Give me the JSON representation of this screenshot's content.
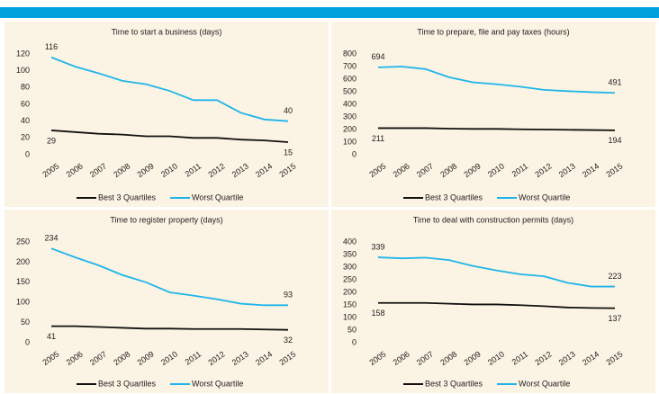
{
  "chart_data": [
    {
      "type": "line",
      "title": "Time to start a business (days)",
      "categories": [
        "2005",
        "2006",
        "2007",
        "2008",
        "2009",
        "2010",
        "2011",
        "2012",
        "2013",
        "2014",
        "2015"
      ],
      "series": [
        {
          "name": "Best 3 Quartiles",
          "color": "#111111",
          "values": [
            29,
            27,
            25,
            24,
            22,
            22,
            20,
            20,
            18,
            17,
            15
          ]
        },
        {
          "name": "Worst Quartile",
          "color": "#1fb5ea",
          "values": [
            116,
            105,
            97,
            88,
            84,
            76,
            65,
            65,
            50,
            42,
            40
          ]
        }
      ],
      "ylim": [
        0,
        120
      ],
      "yticks": [
        0,
        20,
        40,
        60,
        80,
        100,
        120
      ],
      "data_labels": "ends",
      "legend": "bottom"
    },
    {
      "type": "line",
      "title": "Time to prepare, file and pay taxes (hours)",
      "categories": [
        "2005",
        "2006",
        "2007",
        "2008",
        "2009",
        "2010",
        "2011",
        "2012",
        "2013",
        "2014",
        "2015"
      ],
      "series": [
        {
          "name": "Best 3 Quartiles",
          "color": "#111111",
          "values": [
            211,
            211,
            211,
            207,
            205,
            205,
            202,
            200,
            198,
            196,
            194
          ]
        },
        {
          "name": "Worst Quartile",
          "color": "#1fb5ea",
          "values": [
            694,
            700,
            680,
            615,
            575,
            560,
            540,
            515,
            505,
            497,
            491
          ]
        }
      ],
      "ylim": [
        0,
        800
      ],
      "yticks": [
        0,
        100,
        200,
        300,
        400,
        500,
        600,
        700,
        800
      ],
      "data_labels": "ends",
      "legend": "bottom"
    },
    {
      "type": "line",
      "title": "Time to register property (days)",
      "categories": [
        "2005",
        "2006",
        "2007",
        "2008",
        "2009",
        "2010",
        "2011",
        "2012",
        "2013",
        "2014",
        "2015"
      ],
      "series": [
        {
          "name": "Best 3 Quartiles",
          "color": "#111111",
          "values": [
            41,
            41,
            39,
            37,
            35,
            35,
            34,
            34,
            34,
            33,
            32
          ]
        },
        {
          "name": "Worst Quartile",
          "color": "#1fb5ea",
          "values": [
            234,
            212,
            192,
            168,
            150,
            125,
            117,
            108,
            97,
            93,
            93
          ]
        }
      ],
      "ylim": [
        0,
        250
      ],
      "yticks": [
        0,
        50,
        100,
        150,
        200,
        250
      ],
      "data_labels": "ends",
      "legend": "bottom"
    },
    {
      "type": "line",
      "title": "Time to deal with construction permits (days)",
      "categories": [
        "2005",
        "2006",
        "2007",
        "2008",
        "2009",
        "2010",
        "2011",
        "2012",
        "2013",
        "2014",
        "2015"
      ],
      "series": [
        {
          "name": "Best 3 Quartiles",
          "color": "#111111",
          "values": [
            158,
            158,
            158,
            155,
            152,
            152,
            149,
            145,
            140,
            138,
            137
          ]
        },
        {
          "name": "Worst Quartile",
          "color": "#1fb5ea",
          "values": [
            339,
            335,
            338,
            328,
            305,
            287,
            272,
            264,
            238,
            223,
            223
          ]
        }
      ],
      "ylim": [
        0,
        400
      ],
      "yticks": [
        0,
        50,
        100,
        150,
        200,
        250,
        300,
        350,
        400
      ],
      "data_labels": "ends",
      "legend": "bottom"
    }
  ]
}
